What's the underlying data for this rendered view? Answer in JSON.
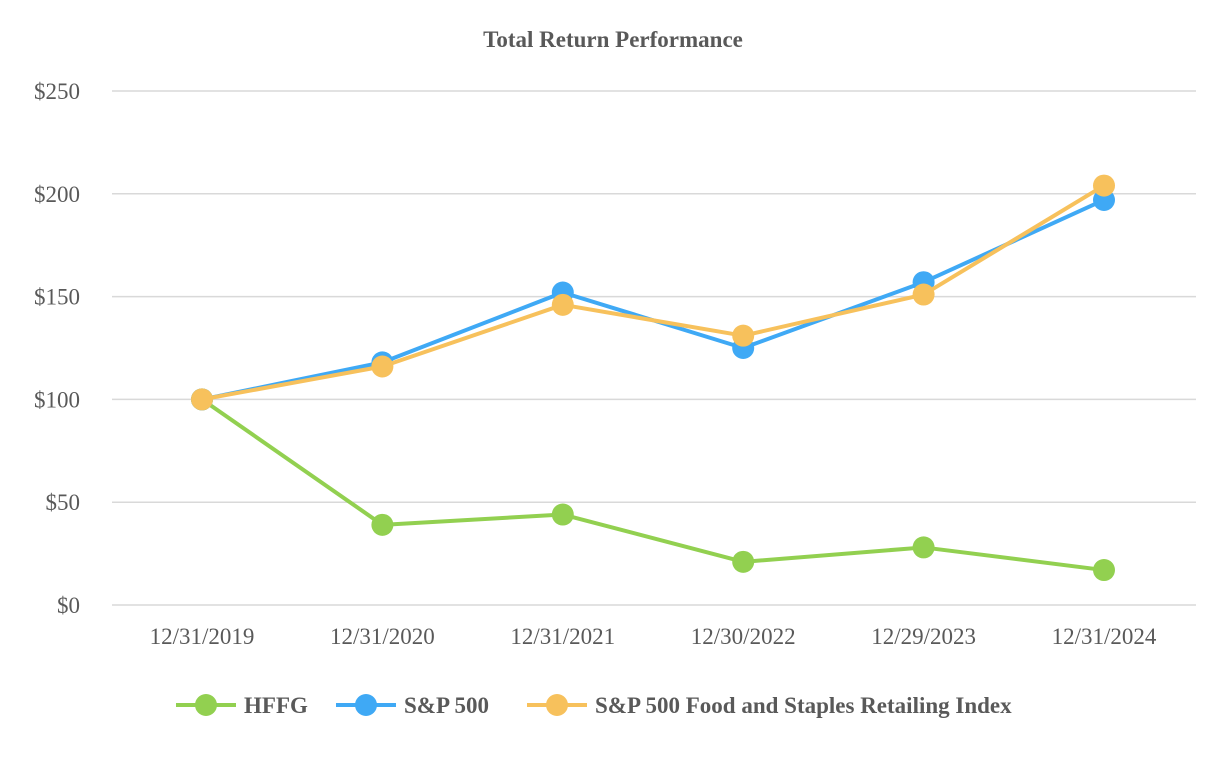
{
  "chart_data": {
    "type": "line",
    "title": "Total Return Performance",
    "xlabel": "",
    "ylabel": "",
    "categories": [
      "12/31/2019",
      "12/31/2020",
      "12/31/2021",
      "12/30/2022",
      "12/29/2023",
      "12/31/2024"
    ],
    "ylim": [
      0,
      250
    ],
    "yticks": [
      0,
      50,
      100,
      150,
      200,
      250
    ],
    "ytick_labels": [
      "$0",
      "$50",
      "$100",
      "$150",
      "$200",
      "$250"
    ],
    "grid": "horizontal",
    "legend_position": "bottom",
    "series": [
      {
        "name": "HFFG",
        "color": "#92d050",
        "values": [
          100,
          39,
          44,
          21,
          28,
          17
        ]
      },
      {
        "name": "S&P 500",
        "color": "#3fa9f5",
        "values": [
          100,
          118,
          152,
          125,
          157,
          197
        ]
      },
      {
        "name": "S&P 500 Food and Staples Retailing Index",
        "color": "#f7c15c",
        "values": [
          100,
          116,
          146,
          131,
          151,
          204
        ]
      }
    ]
  }
}
